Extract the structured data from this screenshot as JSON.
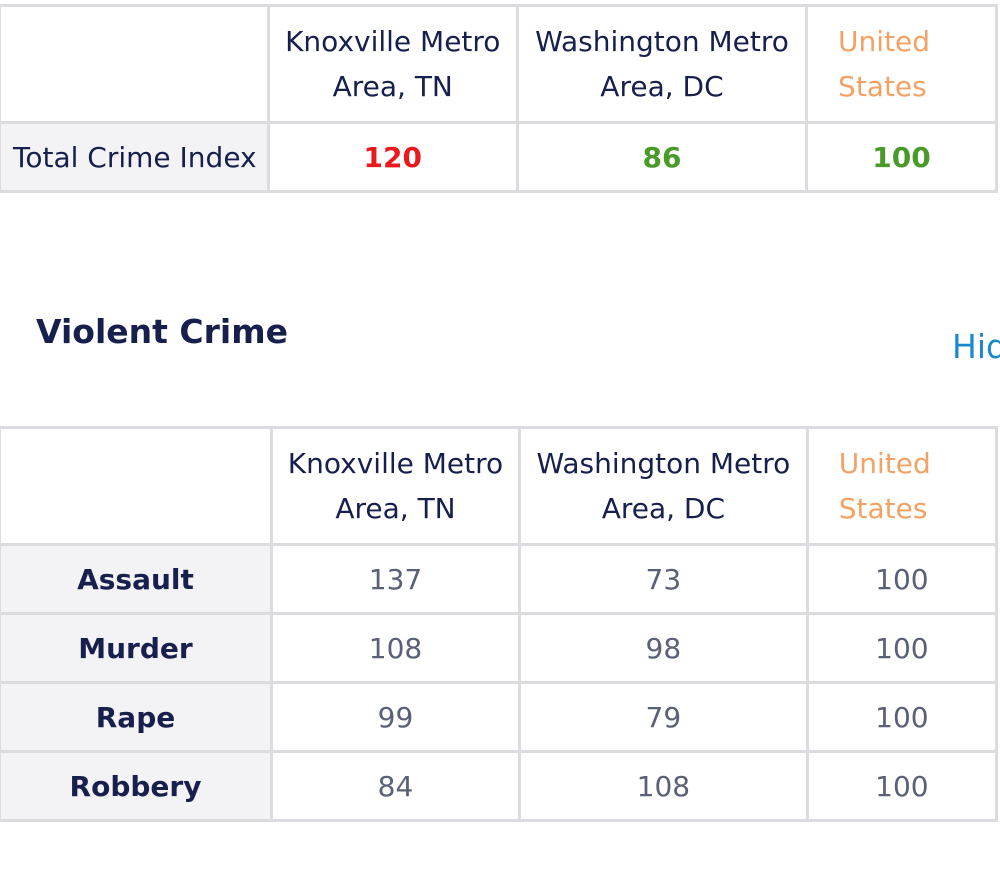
{
  "total_table": {
    "columns": [
      "Knoxville Metro\nArea, TN",
      "Washington Metro\nArea, DC",
      "United\nStates"
    ],
    "columns_lines": [
      [
        "Knoxville Metro",
        "Area, TN"
      ],
      [
        "Washington Metro",
        "Area, DC"
      ],
      [
        "United",
        "States"
      ]
    ],
    "row_label": "Total Crime Index",
    "values": [
      "120",
      "86",
      "100"
    ],
    "value_colors": [
      "#e9191e",
      "#4a9a2a",
      "#4a9a2a"
    ]
  },
  "violent": {
    "title": "Violent Crime",
    "hide_link": "Hide",
    "columns_lines": [
      [
        "Knoxville Metro",
        "Area, TN"
      ],
      [
        "Washington Metro",
        "Area, DC"
      ],
      [
        "United",
        "States"
      ]
    ],
    "rows": [
      {
        "label": "Assault",
        "values": [
          "137",
          "73",
          "100"
        ]
      },
      {
        "label": "Murder",
        "values": [
          "108",
          "98",
          "100"
        ]
      },
      {
        "label": "Rape",
        "values": [
          "99",
          "79",
          "100"
        ]
      },
      {
        "label": "Robbery",
        "values": [
          "84",
          "108",
          "100"
        ]
      }
    ]
  },
  "colors": {
    "navy": "#17204d",
    "red": "#e9191e",
    "green": "#4a9a2a",
    "us_header": "#f3a266",
    "link": "#1a8ad0"
  }
}
